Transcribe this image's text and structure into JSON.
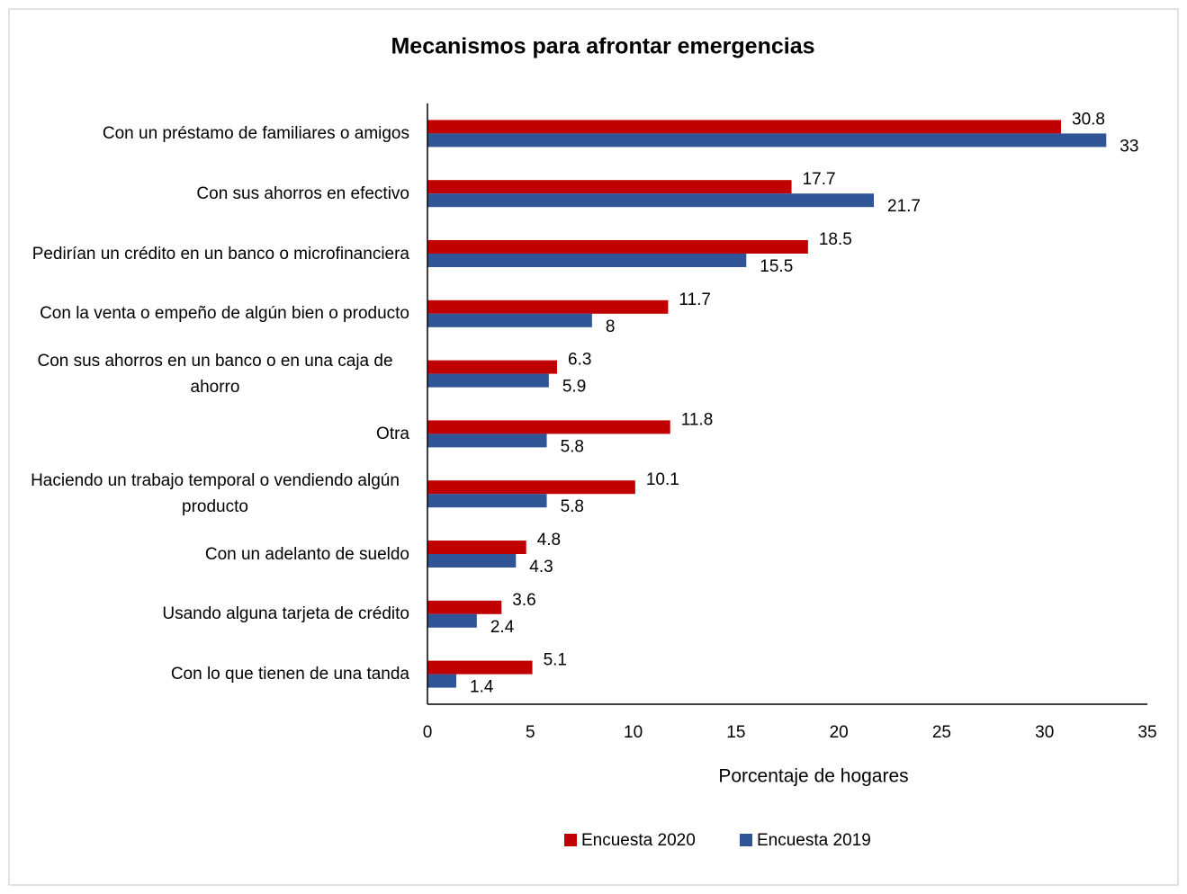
{
  "chart_data": {
    "type": "hbar",
    "title": "Mecanismos para afrontar emergencias",
    "x_label": "Porcentaje de hogares",
    "categories": [
      "Con un préstamo de familiares o amigos",
      "Con sus ahorros en efectivo",
      "Pedirían un crédito en un banco o microfinanciera",
      "Con la venta o empeño de algún bien o producto",
      "Con sus ahorros en un banco o en una caja de ahorro",
      "Otra",
      "Haciendo un trabajo temporal o vendiendo algún producto",
      "Con un adelanto de sueldo",
      "Usando alguna tarjeta de crédito",
      "Con lo que tienen de una tanda"
    ],
    "series": [
      {
        "name": "Encuesta 2020",
        "color": "#c00000",
        "values": [
          30.8,
          17.7,
          18.5,
          11.7,
          6.3,
          11.8,
          10.1,
          4.8,
          3.6,
          5.1
        ]
      },
      {
        "name": "Encuesta 2019",
        "color": "#2f5597",
        "values": [
          33,
          21.7,
          15.5,
          8,
          5.9,
          5.8,
          5.8,
          4.3,
          2.4,
          1.4
        ]
      }
    ],
    "xlim": [
      0,
      35
    ],
    "xticks": [
      0,
      5,
      10,
      15,
      20,
      25,
      30,
      35
    ],
    "legend": "bottom"
  }
}
